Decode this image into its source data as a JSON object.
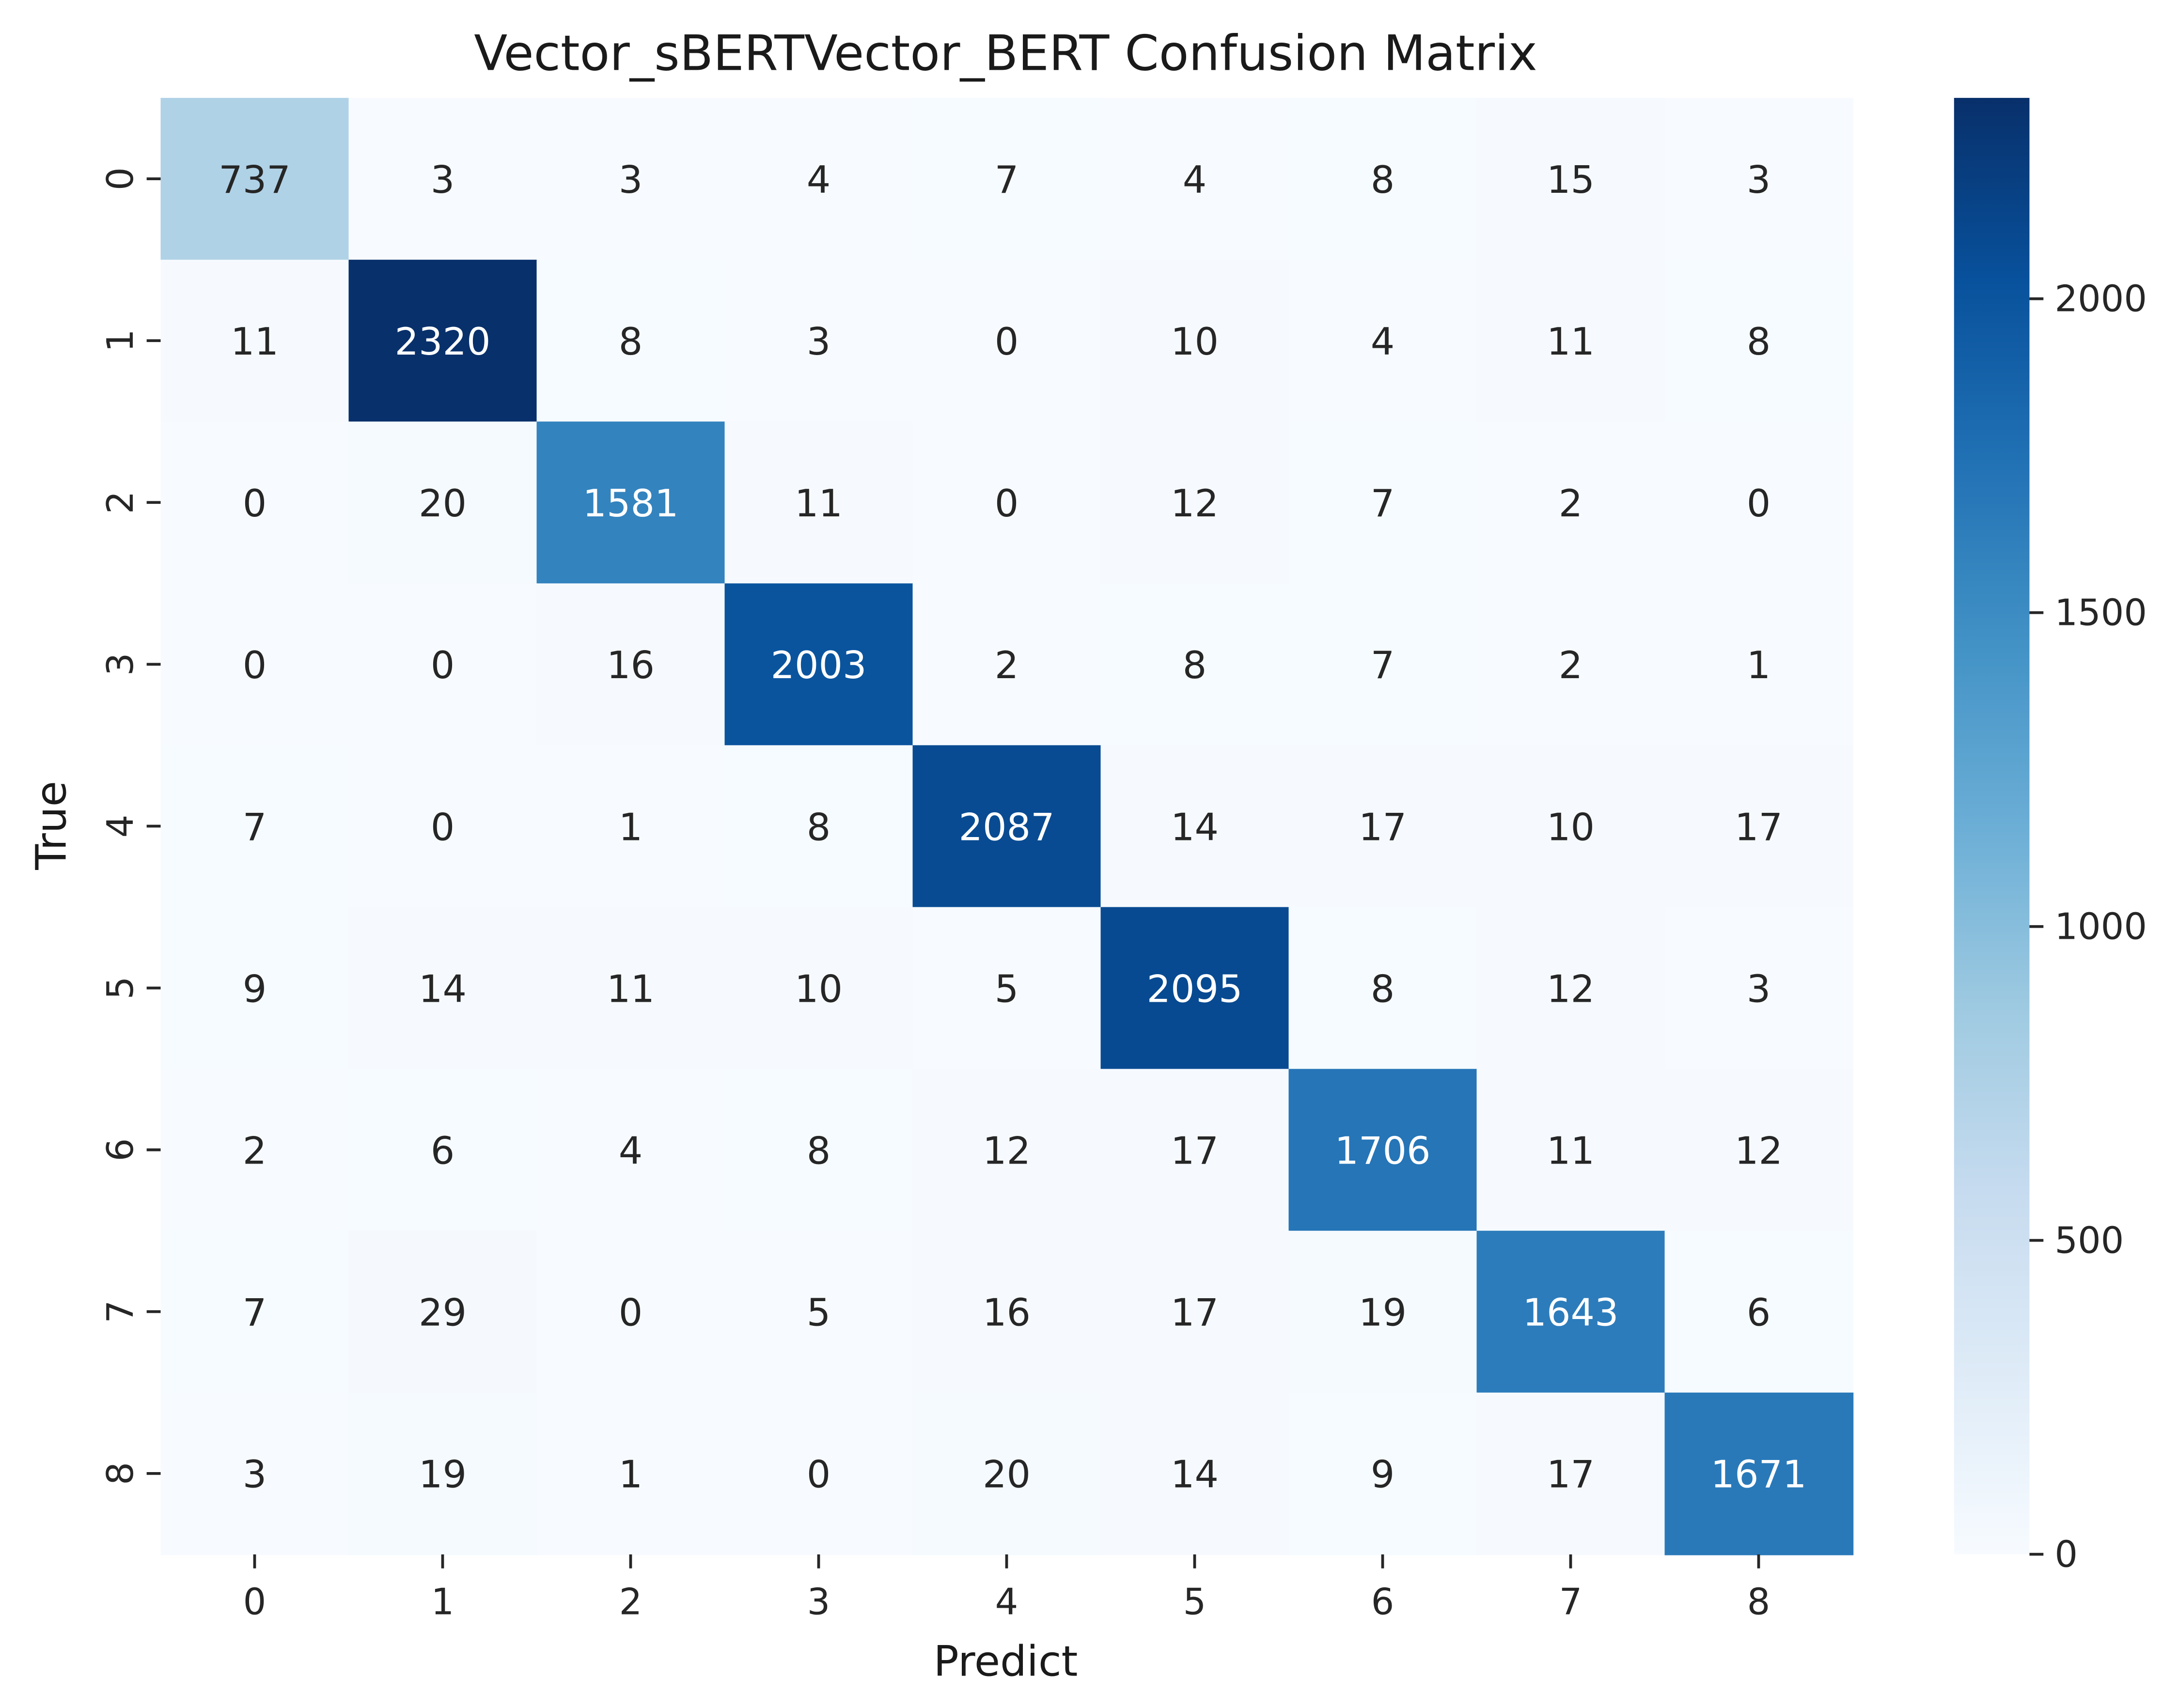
{
  "chart_data": {
    "type": "heatmap",
    "title": "Vector_sBERTVector_BERT Confusion Matrix",
    "xlabel": "Predict",
    "ylabel": "True",
    "x_categories": [
      "0",
      "1",
      "2",
      "3",
      "4",
      "5",
      "6",
      "7",
      "8"
    ],
    "y_categories": [
      "0",
      "1",
      "2",
      "3",
      "4",
      "5",
      "6",
      "7",
      "8"
    ],
    "matrix": [
      [
        737,
        3,
        3,
        4,
        7,
        4,
        8,
        15,
        3
      ],
      [
        11,
        2320,
        8,
        3,
        0,
        10,
        4,
        11,
        8
      ],
      [
        0,
        20,
        1581,
        11,
        0,
        12,
        7,
        2,
        0
      ],
      [
        0,
        0,
        16,
        2003,
        2,
        8,
        7,
        2,
        1
      ],
      [
        7,
        0,
        1,
        8,
        2087,
        14,
        17,
        10,
        17
      ],
      [
        9,
        14,
        11,
        10,
        5,
        2095,
        8,
        12,
        3
      ],
      [
        2,
        6,
        4,
        8,
        12,
        17,
        1706,
        11,
        12
      ],
      [
        7,
        29,
        0,
        5,
        16,
        17,
        19,
        1643,
        6
      ],
      [
        3,
        19,
        1,
        0,
        20,
        14,
        9,
        17,
        1671
      ]
    ],
    "colormap": "Blues",
    "colorbar": {
      "min": 0,
      "max": 2320,
      "ticks": [
        0,
        500,
        1000,
        1500,
        2000
      ],
      "tick_labels": [
        "0",
        "500",
        "1000",
        "1500",
        "2000"
      ]
    },
    "legend": "none",
    "grid": false
  }
}
